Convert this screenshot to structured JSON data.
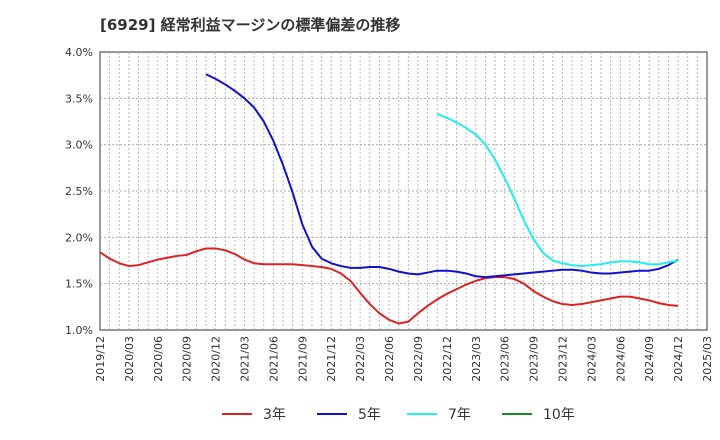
{
  "chart_data": {
    "type": "line",
    "title": "[6929]  経常利益マージンの標準偏差の推移",
    "xlabel": "",
    "ylabel": "",
    "ylim": [
      1.0,
      4.0
    ],
    "y_ticks": [
      "1.0%",
      "1.5%",
      "2.0%",
      "2.5%",
      "3.0%",
      "3.5%",
      "4.0%"
    ],
    "y_tick_values": [
      1.0,
      1.5,
      2.0,
      2.5,
      3.0,
      3.5,
      4.0
    ],
    "x_start": "2019/12",
    "x_end": "2025/03",
    "x_ticks": [
      "2019/12",
      "2020/03",
      "2020/06",
      "2020/09",
      "2020/12",
      "2021/03",
      "2021/06",
      "2021/09",
      "2021/12",
      "2022/03",
      "2022/06",
      "2022/09",
      "2022/12",
      "2023/03",
      "2023/06",
      "2023/09",
      "2023/12",
      "2024/03",
      "2024/06",
      "2024/09",
      "2024/12",
      "2025/03"
    ],
    "grid": true,
    "legend_position": "bottom",
    "series": [
      {
        "name": "3年",
        "color": "#dd2222",
        "points": [
          [
            "2019/12",
            1.84
          ],
          [
            "2020/01",
            1.77
          ],
          [
            "2020/02",
            1.72
          ],
          [
            "2020/03",
            1.69
          ],
          [
            "2020/04",
            1.7
          ],
          [
            "2020/05",
            1.73
          ],
          [
            "2020/06",
            1.76
          ],
          [
            "2020/07",
            1.78
          ],
          [
            "2020/08",
            1.8
          ],
          [
            "2020/09",
            1.81
          ],
          [
            "2020/10",
            1.85
          ],
          [
            "2020/11",
            1.88
          ],
          [
            "2020/12",
            1.88
          ],
          [
            "2021/01",
            1.86
          ],
          [
            "2021/02",
            1.82
          ],
          [
            "2021/03",
            1.76
          ],
          [
            "2021/04",
            1.72
          ],
          [
            "2021/05",
            1.71
          ],
          [
            "2021/06",
            1.71
          ],
          [
            "2021/07",
            1.71
          ],
          [
            "2021/08",
            1.71
          ],
          [
            "2021/09",
            1.7
          ],
          [
            "2021/10",
            1.69
          ],
          [
            "2021/11",
            1.68
          ],
          [
            "2021/12",
            1.66
          ],
          [
            "2022/01",
            1.61
          ],
          [
            "2022/02",
            1.53
          ],
          [
            "2022/03",
            1.4
          ],
          [
            "2022/04",
            1.28
          ],
          [
            "2022/05",
            1.18
          ],
          [
            "2022/06",
            1.11
          ],
          [
            "2022/07",
            1.07
          ],
          [
            "2022/08",
            1.09
          ],
          [
            "2022/09",
            1.18
          ],
          [
            "2022/10",
            1.26
          ],
          [
            "2022/11",
            1.33
          ],
          [
            "2022/12",
            1.39
          ],
          [
            "2023/01",
            1.44
          ],
          [
            "2023/02",
            1.49
          ],
          [
            "2023/03",
            1.53
          ],
          [
            "2023/04",
            1.56
          ],
          [
            "2023/05",
            1.57
          ],
          [
            "2023/06",
            1.57
          ],
          [
            "2023/07",
            1.55
          ],
          [
            "2023/08",
            1.5
          ],
          [
            "2023/09",
            1.42
          ],
          [
            "2023/10",
            1.36
          ],
          [
            "2023/11",
            1.31
          ],
          [
            "2023/12",
            1.28
          ],
          [
            "2024/01",
            1.27
          ],
          [
            "2024/02",
            1.28
          ],
          [
            "2024/03",
            1.3
          ],
          [
            "2024/04",
            1.32
          ],
          [
            "2024/05",
            1.34
          ],
          [
            "2024/06",
            1.36
          ],
          [
            "2024/07",
            1.36
          ],
          [
            "2024/08",
            1.34
          ],
          [
            "2024/09",
            1.32
          ],
          [
            "2024/10",
            1.29
          ],
          [
            "2024/11",
            1.27
          ],
          [
            "2024/12",
            1.26
          ]
        ]
      },
      {
        "name": "5年",
        "color": "#1111cc",
        "points": [
          [
            "2020/11",
            3.76
          ],
          [
            "2020/12",
            3.71
          ],
          [
            "2021/01",
            3.65
          ],
          [
            "2021/02",
            3.58
          ],
          [
            "2021/03",
            3.5
          ],
          [
            "2021/04",
            3.4
          ],
          [
            "2021/05",
            3.25
          ],
          [
            "2021/06",
            3.04
          ],
          [
            "2021/07",
            2.78
          ],
          [
            "2021/08",
            2.48
          ],
          [
            "2021/09",
            2.14
          ],
          [
            "2021/10",
            1.9
          ],
          [
            "2021/11",
            1.77
          ],
          [
            "2021/12",
            1.72
          ],
          [
            "2022/01",
            1.69
          ],
          [
            "2022/02",
            1.67
          ],
          [
            "2022/03",
            1.67
          ],
          [
            "2022/04",
            1.68
          ],
          [
            "2022/05",
            1.68
          ],
          [
            "2022/06",
            1.66
          ],
          [
            "2022/07",
            1.63
          ],
          [
            "2022/08",
            1.61
          ],
          [
            "2022/09",
            1.6
          ],
          [
            "2022/10",
            1.62
          ],
          [
            "2022/11",
            1.64
          ],
          [
            "2022/12",
            1.64
          ],
          [
            "2023/01",
            1.63
          ],
          [
            "2023/02",
            1.61
          ],
          [
            "2023/03",
            1.58
          ],
          [
            "2023/04",
            1.57
          ],
          [
            "2023/05",
            1.58
          ],
          [
            "2023/06",
            1.59
          ],
          [
            "2023/07",
            1.6
          ],
          [
            "2023/08",
            1.61
          ],
          [
            "2023/09",
            1.62
          ],
          [
            "2023/10",
            1.63
          ],
          [
            "2023/11",
            1.64
          ],
          [
            "2023/12",
            1.65
          ],
          [
            "2024/01",
            1.65
          ],
          [
            "2024/02",
            1.64
          ],
          [
            "2024/03",
            1.62
          ],
          [
            "2024/04",
            1.61
          ],
          [
            "2024/05",
            1.61
          ],
          [
            "2024/06",
            1.62
          ],
          [
            "2024/07",
            1.63
          ],
          [
            "2024/08",
            1.64
          ],
          [
            "2024/09",
            1.64
          ],
          [
            "2024/10",
            1.66
          ],
          [
            "2024/11",
            1.7
          ],
          [
            "2024/12",
            1.76
          ]
        ]
      },
      {
        "name": "7年",
        "color": "#22eeee",
        "points": [
          [
            "2022/11",
            3.33
          ],
          [
            "2022/12",
            3.29
          ],
          [
            "2023/01",
            3.24
          ],
          [
            "2023/02",
            3.18
          ],
          [
            "2023/03",
            3.11
          ],
          [
            "2023/04",
            3.0
          ],
          [
            "2023/05",
            2.84
          ],
          [
            "2023/06",
            2.64
          ],
          [
            "2023/07",
            2.42
          ],
          [
            "2023/08",
            2.18
          ],
          [
            "2023/09",
            1.98
          ],
          [
            "2023/10",
            1.83
          ],
          [
            "2023/11",
            1.75
          ],
          [
            "2023/12",
            1.72
          ],
          [
            "2024/01",
            1.7
          ],
          [
            "2024/02",
            1.69
          ],
          [
            "2024/03",
            1.7
          ],
          [
            "2024/04",
            1.71
          ],
          [
            "2024/05",
            1.73
          ],
          [
            "2024/06",
            1.74
          ],
          [
            "2024/07",
            1.74
          ],
          [
            "2024/08",
            1.73
          ],
          [
            "2024/09",
            1.71
          ],
          [
            "2024/10",
            1.71
          ],
          [
            "2024/11",
            1.73
          ],
          [
            "2024/12",
            1.75
          ]
        ]
      },
      {
        "name": "10年",
        "color": "#228822",
        "points": []
      }
    ]
  }
}
